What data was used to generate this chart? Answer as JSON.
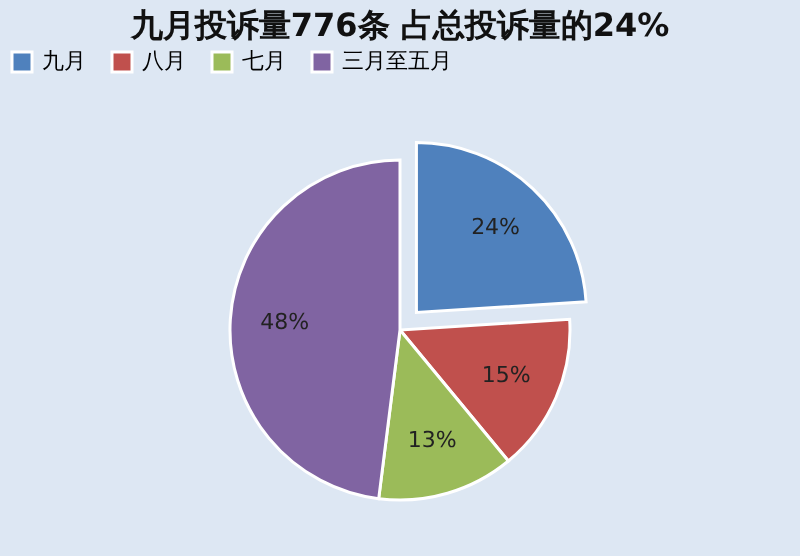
{
  "chart_data": {
    "type": "pie",
    "title": "九月投诉量776条 占总投诉量的24%",
    "categories": [
      "九月",
      "八月",
      "七月",
      "三月至五月"
    ],
    "values": [
      24,
      15,
      13,
      48
    ],
    "value_labels": [
      "24%",
      "15%",
      "13%",
      "48%"
    ],
    "colors": [
      "#4f81bd",
      "#c0504d",
      "#9bbb59",
      "#8064a2"
    ],
    "legend": "top"
  }
}
